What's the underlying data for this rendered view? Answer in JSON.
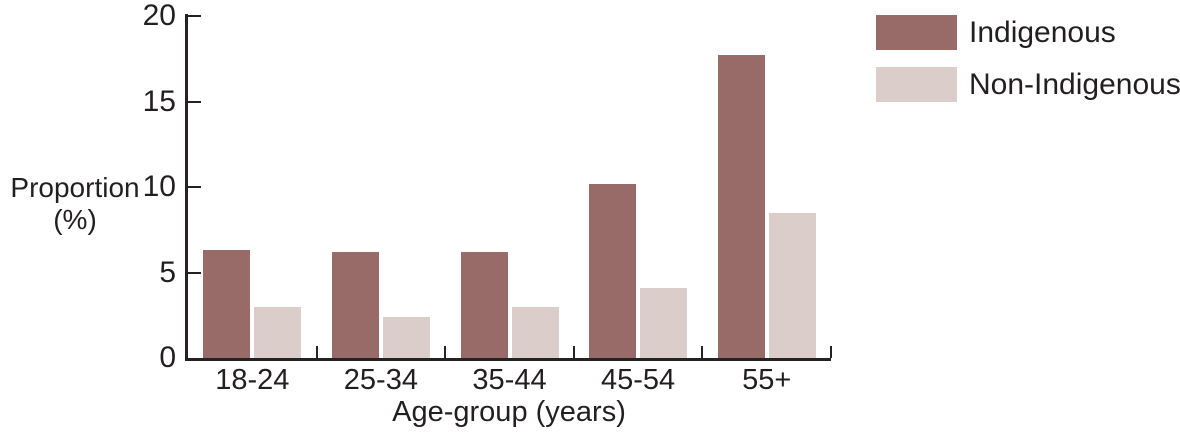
{
  "chart_data": {
    "type": "bar",
    "title": "",
    "categories": [
      "18-24",
      "25-34",
      "35-44",
      "45-54",
      "55+"
    ],
    "series": [
      {
        "name": "Indigenous",
        "color": "#996B68",
        "values": [
          6.3,
          6.2,
          6.2,
          10.2,
          17.7
        ]
      },
      {
        "name": "Non-Indigenous",
        "color": "#DACDCA",
        "values": [
          3.0,
          2.4,
          3.0,
          4.1,
          8.5
        ]
      }
    ],
    "xlabel": "Age-group (years)",
    "ylabel": "Proportion (%)",
    "ylabel_line1": "Proportion",
    "ylabel_line2": "(%)",
    "y_ticks": [
      0,
      5,
      10,
      15,
      20
    ],
    "ylim": [
      0,
      20
    ],
    "grid": false,
    "legend_position": "top-right"
  },
  "colors": {
    "axis": "#262223",
    "text": "#231F20",
    "background": "#FFFFFF"
  }
}
